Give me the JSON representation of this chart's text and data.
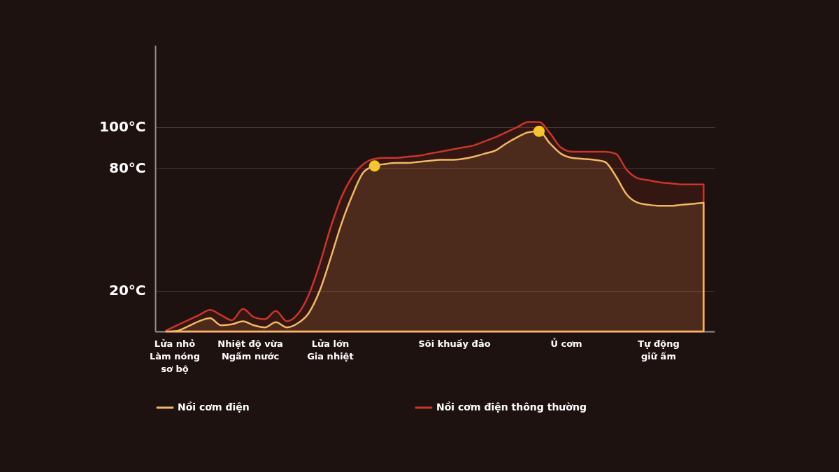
{
  "chart_data": {
    "type": "area",
    "ylim": [
      0,
      140
    ],
    "yticks": [
      {
        "value": 20,
        "label": "20°C"
      },
      {
        "value": 80,
        "label": "80°C"
      },
      {
        "value": 100,
        "label": "100°C"
      }
    ],
    "categories": [
      null,
      null,
      null,
      null,
      null,
      null,
      null,
      null,
      null,
      null,
      null,
      null,
      null,
      null,
      null,
      null,
      null,
      null,
      null,
      null,
      null,
      null,
      null,
      null,
      null,
      null,
      null,
      null,
      null,
      null,
      null,
      null,
      null,
      null,
      null,
      null,
      null,
      null,
      null,
      null,
      null,
      null,
      null,
      null,
      null,
      null,
      null,
      null,
      null,
      null
    ],
    "grid": "y",
    "legend": "bottom",
    "annotations": [
      "Lửa nhỏ\nLàm nóng\nsơ bộ",
      "Nhiệt độ vừa\nNgấm nước",
      "Lửa lớn\nGia nhiệt",
      "Sôi khuấy đảo",
      "Ủ cơm",
      "Tự động\ngiữ ấm"
    ],
    "series": [
      {
        "name": "Nồi cơm điện",
        "color": "#f2b865",
        "values": [
          0,
          0.3,
          2.5,
          5,
          6.5,
          3,
          3.5,
          5,
          3,
          2,
          4.5,
          2,
          4,
          9,
          20,
          36,
          53,
          67,
          78,
          81,
          82,
          82.5,
          82.5,
          83,
          83.5,
          84,
          84,
          84.5,
          85.5,
          87,
          88.5,
          92,
          95,
          97.5,
          98,
          92,
          87,
          85,
          84.5,
          84,
          83,
          76,
          67,
          63,
          62,
          61.5,
          61.5,
          62,
          62.5,
          63
        ]
      },
      {
        "name": "Nồi cơm điện thông thường",
        "color": "#c8362c",
        "values": [
          0.5,
          3,
          5.5,
          8,
          10.5,
          8,
          5.5,
          11,
          7,
          6,
          10,
          5,
          8.5,
          18,
          33,
          51,
          66,
          76,
          82,
          84.5,
          85,
          85,
          85.5,
          86,
          87,
          88,
          89,
          90,
          91,
          93,
          95,
          97.5,
          100,
          102.5,
          102.5,
          97,
          90,
          88,
          88,
          88,
          88,
          87,
          79,
          75,
          74,
          73,
          72.5,
          72,
          72,
          72
        ]
      },
      {
        "type": "scatter",
        "color": "#ffe11a",
        "values": [
          null,
          null,
          null,
          null,
          null,
          null,
          null,
          null,
          null,
          null,
          null,
          null,
          null,
          null,
          null,
          null,
          null,
          null,
          null,
          81,
          null,
          null,
          null,
          null,
          null,
          null,
          null,
          null,
          null,
          null,
          null,
          null,
          null,
          null,
          98,
          null,
          null,
          null,
          null,
          null,
          null,
          null,
          null,
          null,
          null,
          null,
          null,
          null,
          null,
          null
        ]
      }
    ]
  }
}
